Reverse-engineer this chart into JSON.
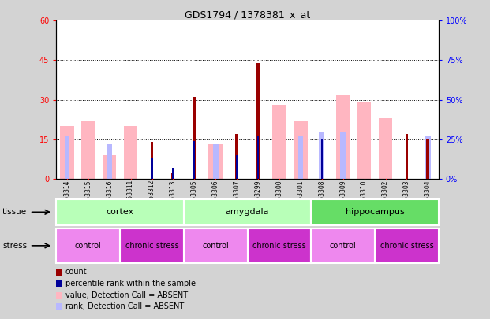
{
  "title": "GDS1794 / 1378381_x_at",
  "samples": [
    "GSM53314",
    "GSM53315",
    "GSM53316",
    "GSM53311",
    "GSM53312",
    "GSM53313",
    "GSM53305",
    "GSM53306",
    "GSM53307",
    "GSM53299",
    "GSM53300",
    "GSM53301",
    "GSM53308",
    "GSM53309",
    "GSM53310",
    "GSM53302",
    "GSM53303",
    "GSM53304"
  ],
  "count": [
    0,
    0,
    0,
    0,
    14,
    2,
    31,
    0,
    17,
    44,
    0,
    0,
    0,
    0,
    0,
    0,
    17,
    15
  ],
  "percentile": [
    0,
    0,
    0,
    0,
    13,
    7,
    24,
    0,
    15,
    27,
    0,
    0,
    25,
    0,
    0,
    0,
    0,
    0
  ],
  "absent_value": [
    20,
    22,
    9,
    20,
    0,
    0,
    0,
    13,
    0,
    0,
    28,
    22,
    0,
    32,
    29,
    23,
    0,
    0
  ],
  "absent_rank": [
    27,
    0,
    22,
    0,
    0,
    0,
    0,
    22,
    0,
    0,
    0,
    27,
    30,
    30,
    0,
    0,
    0,
    27
  ],
  "tissue_groups": [
    {
      "label": "cortex",
      "start": 0,
      "end": 6
    },
    {
      "label": "amygdala",
      "start": 6,
      "end": 12
    },
    {
      "label": "hippocampus",
      "start": 12,
      "end": 18
    }
  ],
  "stress_groups": [
    {
      "label": "control",
      "start": 0,
      "end": 3
    },
    {
      "label": "chronic stress",
      "start": 3,
      "end": 6
    },
    {
      "label": "control",
      "start": 6,
      "end": 9
    },
    {
      "label": "chronic stress",
      "start": 9,
      "end": 12
    },
    {
      "label": "control",
      "start": 12,
      "end": 15
    },
    {
      "label": "chronic stress",
      "start": 15,
      "end": 18
    }
  ],
  "ylim_left": [
    0,
    60
  ],
  "ylim_right": [
    0,
    100
  ],
  "yticks_left": [
    0,
    15,
    30,
    45,
    60
  ],
  "yticks_right": [
    0,
    25,
    50,
    75,
    100
  ],
  "color_count": "#990000",
  "color_percentile": "#000099",
  "color_absent_value": "#ffb6c1",
  "color_absent_rank": "#b8b8ff",
  "color_tissue_light": "#b8ffb8",
  "color_tissue_dark": "#66dd66",
  "color_stress_control": "#ee88ee",
  "color_stress_chronic": "#cc33cc",
  "bg_color": "#d3d3d3",
  "plot_bg": "#ffffff",
  "xtick_bg": "#c8c8c8"
}
